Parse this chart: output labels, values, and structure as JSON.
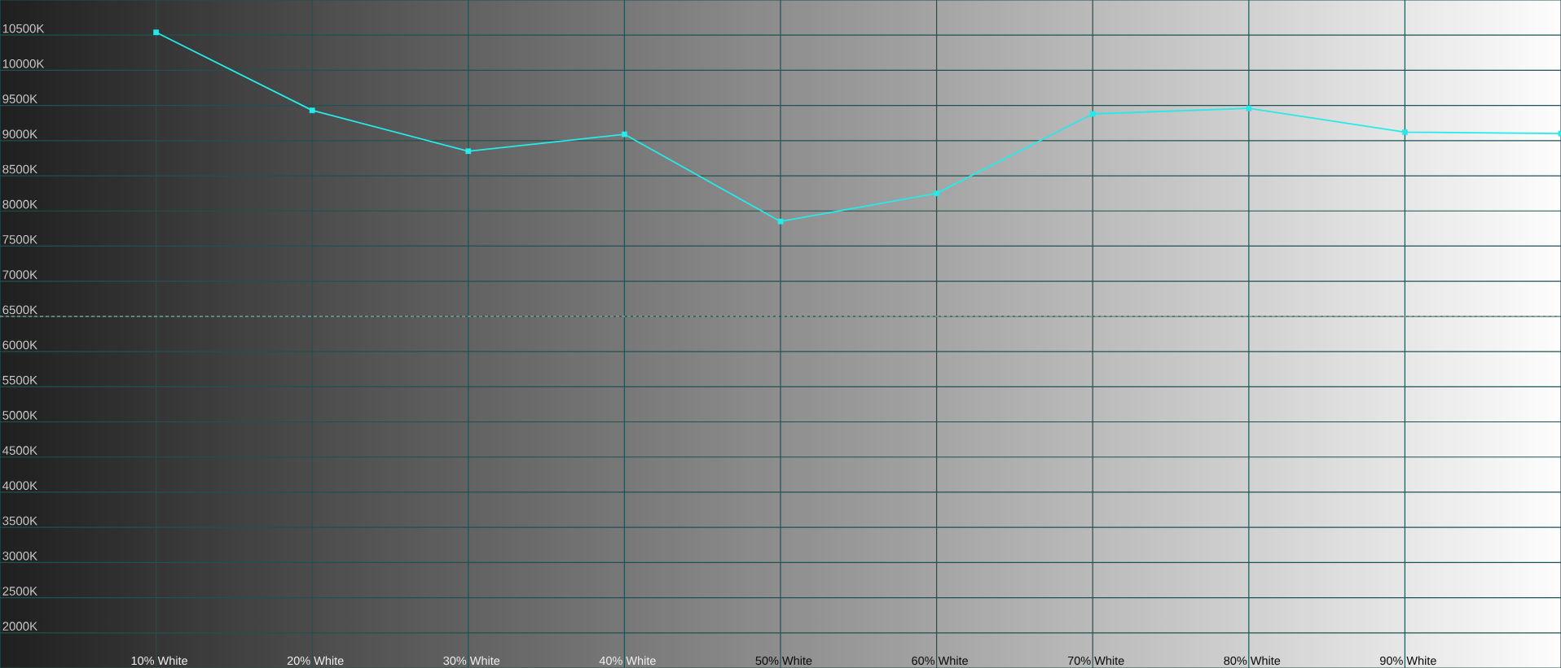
{
  "chart_data": {
    "type": "line",
    "x": [
      10,
      20,
      30,
      40,
      50,
      60,
      70,
      80,
      90,
      100
    ],
    "series": [
      {
        "color": "#26eaea",
        "values": [
          10540,
          9430,
          8850,
          9090,
          7850,
          8250,
          9380,
          9460,
          9120,
          9100
        ]
      }
    ],
    "xlim": [
      0,
      100
    ],
    "ylim": [
      1500,
      11000
    ],
    "xticks": [
      {
        "value": 10,
        "label": "10% White"
      },
      {
        "value": 20,
        "label": "20% White"
      },
      {
        "value": 30,
        "label": "30% White"
      },
      {
        "value": 40,
        "label": "40% White"
      },
      {
        "value": 50,
        "label": "50% White"
      },
      {
        "value": 60,
        "label": "60% White"
      },
      {
        "value": 70,
        "label": "70% White"
      },
      {
        "value": 80,
        "label": "80% White"
      },
      {
        "value": 90,
        "label": "90% White"
      }
    ],
    "yticks": [
      {
        "value": 2000,
        "label": "2000K"
      },
      {
        "value": 2500,
        "label": "2500K"
      },
      {
        "value": 3000,
        "label": "3000K"
      },
      {
        "value": 3500,
        "label": "3500K"
      },
      {
        "value": 4000,
        "label": "4000K"
      },
      {
        "value": 4500,
        "label": "4500K"
      },
      {
        "value": 5000,
        "label": "5000K"
      },
      {
        "value": 5500,
        "label": "5500K"
      },
      {
        "value": 6000,
        "label": "6000K"
      },
      {
        "value": 6500,
        "label": "6500K"
      },
      {
        "value": 7000,
        "label": "7000K"
      },
      {
        "value": 7500,
        "label": "7500K"
      },
      {
        "value": 8000,
        "label": "8000K"
      },
      {
        "value": 8500,
        "label": "8500K"
      },
      {
        "value": 9000,
        "label": "9000K"
      },
      {
        "value": 9500,
        "label": "9500K"
      },
      {
        "value": 10000,
        "label": "10000K"
      },
      {
        "value": 10500,
        "label": "10500K"
      }
    ],
    "grid": true,
    "marker": "square",
    "line_style": "solid",
    "ref_lines": [
      {
        "axis": "y",
        "value": 6500,
        "color": "#b8b8b8",
        "line_style": "dashed"
      }
    ]
  }
}
